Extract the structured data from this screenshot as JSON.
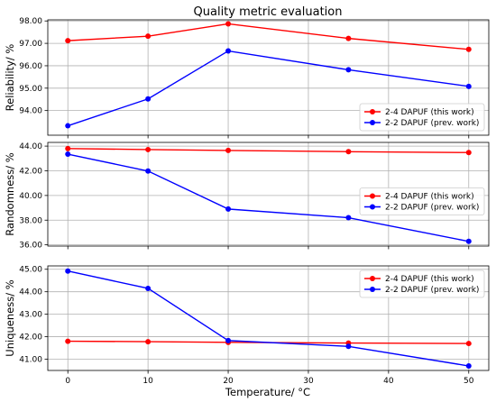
{
  "chart_data": {
    "type": "line",
    "title": "Quality metric evaluation",
    "xlabel": "Temperature/ °C",
    "x": [
      0,
      10,
      20,
      35,
      50
    ],
    "xlim": [
      -2.5,
      52.5
    ],
    "xticks": [
      0,
      10,
      20,
      30,
      40,
      50
    ],
    "grid": true,
    "legend_location": "lower-right",
    "colors": {
      "this_work": "#ff0000",
      "prev_work": "#0000ff"
    },
    "subplots": [
      {
        "ylabel": "Reliability/ %",
        "ylim": [
          92.9,
          98.05
        ],
        "yticks": [
          "94.00",
          "95.00",
          "96.00",
          "97.00",
          "98.00"
        ],
        "legend_location": "lower-right",
        "series": [
          {
            "name": "2-4 DAPUF (this work)",
            "values": [
              97.12,
              97.32,
              97.87,
              97.22,
              96.73
            ]
          },
          {
            "name": "2-2 DAPUF (prev. work)",
            "values": [
              93.32,
              94.52,
              96.66,
              95.82,
              95.08
            ]
          }
        ]
      },
      {
        "ylabel": "Randomness/ %",
        "ylim": [
          35.9,
          44.3
        ],
        "yticks": [
          "36.00",
          "38.00",
          "40.00",
          "42.00",
          "44.00"
        ],
        "legend_location": "center-right",
        "series": [
          {
            "name": "2-4 DAPUF (this work)",
            "values": [
              43.8,
              43.72,
              43.65,
              43.55,
              43.48
            ]
          },
          {
            "name": "2-2 DAPUF (prev. work)",
            "values": [
              43.35,
              41.98,
              38.9,
              38.2,
              36.28
            ]
          }
        ]
      },
      {
        "ylabel": "Uniqueness/ %",
        "ylim": [
          40.5,
          45.15
        ],
        "yticks": [
          "41.00",
          "42.00",
          "43.00",
          "44.00",
          "45.00"
        ],
        "legend_location": "top-right",
        "series": [
          {
            "name": "2-4 DAPUF (this work)",
            "values": [
              41.8,
              41.78,
              41.75,
              41.72,
              41.7
            ]
          },
          {
            "name": "2-2 DAPUF (prev. work)",
            "values": [
              44.92,
              44.15,
              41.83,
              41.57,
              40.7
            ]
          }
        ]
      }
    ]
  }
}
